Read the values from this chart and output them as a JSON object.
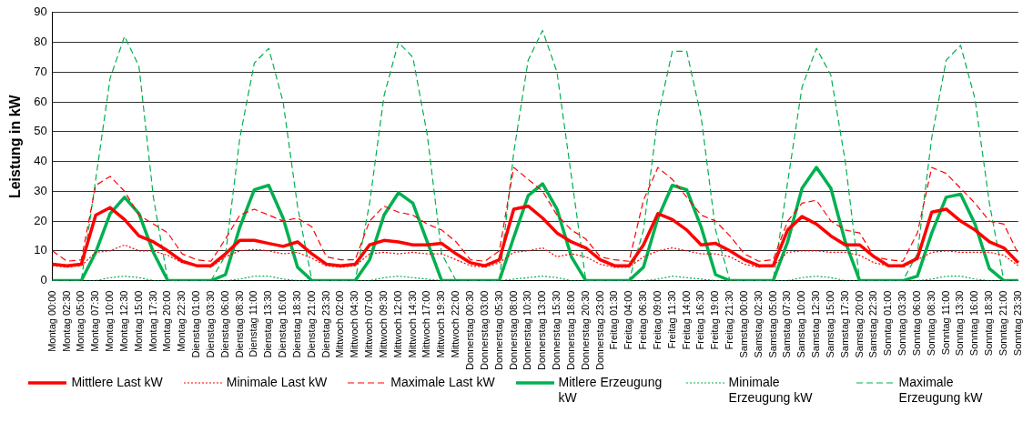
{
  "chart_data": {
    "type": "line",
    "ylabel": "Leistung in kW",
    "categories": [
      "Montag 00:00",
      "Montag 02:30",
      "Montag 05:00",
      "Montag 07:30",
      "Montag 10:00",
      "Montag 12:30",
      "Montag 15:00",
      "Montag 17:30",
      "Montag 20:00",
      "Montag 22:30",
      "Dienstag 01:00",
      "Dienstag 03:30",
      "Dienstag 06:00",
      "Dienstag 08:30",
      "Dienstag 11:00",
      "Dienstag 13:30",
      "Dienstag 16:00",
      "Dienstag 18:30",
      "Dienstag 21:00",
      "Dienstag 23:30",
      "Mittwoch 02:00",
      "Mittwoch 04:30",
      "Mittwoch 07:00",
      "Mittwoch 09:30",
      "Mittwoch 12:00",
      "Mittwoch 14:30",
      "Mittwoch 17:00",
      "Mittwoch 19:30",
      "Mittwoch 22:00",
      "Donnerstag 00:30",
      "Donnerstag 03:00",
      "Donnerstag 05:30",
      "Donnerstag 08:00",
      "Donnerstag 10:30",
      "Donnerstag 13:00",
      "Donnerstag 15:30",
      "Donnerstag 18:00",
      "Donnerstag 20:30",
      "Donnerstag 23:00",
      "Freitag 01:30",
      "Freitag 04:00",
      "Freitag 06:30",
      "Freitag 09:00",
      "Freitag 11:30",
      "Freitag 14:00",
      "Freitag 16:30",
      "Freitag 19:00",
      "Freitag 21:30",
      "Samstag 00:00",
      "Samstag 02:30",
      "Samstag 05:00",
      "Samstag 07:30",
      "Samstag 10:00",
      "Samstag 12:30",
      "Samstag 15:00",
      "Samstag 17:30",
      "Samstag 20:00",
      "Samstag 22:30",
      "Sonntag 01:00",
      "Sonntag 03:30",
      "Sonntag 06:00",
      "Sonntag 08:30",
      "Sonntag 11:00",
      "Sonntag 13:30",
      "Sonntag 16:00",
      "Sonntag 18:30",
      "Sonntag 21:00",
      "Sonntag 23:30"
    ],
    "series": [
      {
        "name": "Mittlere Last kW",
        "color": "#ff0000",
        "line_style": "solid",
        "values": [
          5.5,
          5,
          5.5,
          22,
          24.5,
          20.5,
          15,
          13,
          10,
          6.5,
          5,
          5,
          9,
          13.5,
          13.5,
          12.5,
          11.5,
          13,
          9,
          5.5,
          5,
          5.5,
          12,
          13.5,
          13,
          12,
          12,
          12.5,
          9,
          6,
          5,
          7,
          24,
          25,
          21,
          16,
          13,
          11,
          7,
          5,
          5,
          12,
          22.5,
          20.5,
          17,
          12,
          12.5,
          10,
          7,
          5,
          5,
          17,
          21.5,
          19,
          15,
          12,
          12,
          8,
          5,
          5,
          7.5,
          23,
          24,
          20,
          17,
          13,
          11,
          6
        ]
      },
      {
        "name": "Minimale Last kW",
        "color": "#ff0000",
        "line_style": "dotted",
        "values": [
          5,
          4.5,
          5,
          9.5,
          10,
          12,
          10,
          10,
          8.5,
          6,
          5,
          4.5,
          8,
          10,
          10.5,
          10,
          9,
          9.5,
          7.5,
          5,
          4.5,
          5,
          9,
          9.5,
          9,
          9.5,
          9,
          9,
          7,
          5,
          4.5,
          6,
          9.5,
          10,
          11,
          8,
          9,
          8,
          5.5,
          4.5,
          4.5,
          8,
          10,
          11,
          10,
          9,
          9,
          8,
          5.5,
          4.5,
          5,
          9.5,
          10,
          10,
          9.5,
          9.5,
          8.5,
          6,
          5,
          4.5,
          7,
          9.5,
          10,
          9.5,
          9.5,
          9.5,
          8.5,
          5
        ]
      },
      {
        "name": "Maximale Last kW",
        "color": "#ff0000",
        "line_style": "dashed",
        "values": [
          10,
          6.5,
          7,
          32,
          35,
          30,
          22,
          19,
          16,
          9,
          7,
          6.5,
          14,
          22,
          24,
          22,
          20,
          21,
          18,
          8,
          7,
          7,
          20,
          25,
          23,
          22,
          19,
          17,
          13,
          7,
          6.5,
          10,
          38,
          34,
          30,
          22,
          17,
          14,
          8,
          7,
          6.5,
          27,
          38,
          34,
          28,
          22,
          20,
          15,
          9,
          6.5,
          7,
          20,
          26,
          27,
          20,
          17,
          16,
          8,
          7,
          6.5,
          16,
          38,
          36,
          31,
          26,
          20,
          19,
          9
        ]
      },
      {
        "name": "Mitlere Erzeugung kW",
        "color": "#00b050",
        "line_style": "solid",
        "values": [
          0,
          0,
          0,
          9.5,
          22.5,
          28,
          22.5,
          9.5,
          0,
          0,
          0,
          0,
          2,
          18,
          30.5,
          32,
          21,
          4.5,
          0,
          0,
          0,
          0,
          7,
          22,
          29.5,
          26,
          13,
          0,
          0,
          0,
          0,
          0,
          14.5,
          28.5,
          32.5,
          24,
          8,
          0,
          0,
          0,
          0,
          4.5,
          21,
          32,
          30.5,
          18,
          2,
          0,
          0,
          0,
          0,
          13,
          31,
          38,
          31,
          13,
          0,
          0,
          0,
          0,
          1.5,
          16,
          28,
          29,
          19,
          4,
          0,
          0
        ]
      },
      {
        "name": "Minimale Erzeugung kW",
        "color": "#00b050",
        "line_style": "dotted",
        "values": [
          0,
          0,
          0,
          0,
          1,
          1.5,
          1,
          0,
          0,
          0,
          0,
          0,
          0,
          0.5,
          1.5,
          1.5,
          0.5,
          0,
          0,
          0,
          0,
          0,
          0,
          1,
          1.5,
          1,
          0.5,
          0,
          0,
          0,
          0,
          0,
          0.5,
          1,
          1.5,
          1,
          0,
          0,
          0,
          0,
          0,
          0,
          0.5,
          1.5,
          1,
          0.5,
          0,
          0,
          0,
          0,
          0,
          0,
          1,
          1.5,
          1,
          0,
          0,
          0,
          0,
          0,
          0,
          0.5,
          1.5,
          1.5,
          0.5,
          0,
          0,
          0
        ]
      },
      {
        "name": "Maximale Erzeugung kW",
        "color": "#00b050",
        "line_style": "dashed",
        "values": [
          0,
          0,
          0,
          34,
          68,
          82,
          72,
          28,
          0,
          0,
          0,
          0,
          8.5,
          48,
          73,
          78,
          60,
          25,
          0,
          0,
          0,
          0,
          26,
          62,
          80,
          75,
          49,
          9,
          0,
          0,
          0,
          0,
          43,
          74,
          84,
          70,
          35,
          0,
          0,
          0,
          0,
          17,
          55,
          77,
          77,
          55,
          17,
          0,
          0,
          0,
          0,
          33,
          65,
          78,
          69,
          40,
          0,
          0,
          0,
          0,
          9,
          48,
          74,
          79,
          61,
          26,
          0,
          0
        ]
      }
    ],
    "ylim": [
      0,
      90
    ],
    "yticks": [
      0,
      10,
      20,
      30,
      40,
      50,
      60,
      70,
      80,
      90
    ],
    "grid": "y",
    "legend": "bottom",
    "marker": "none"
  }
}
